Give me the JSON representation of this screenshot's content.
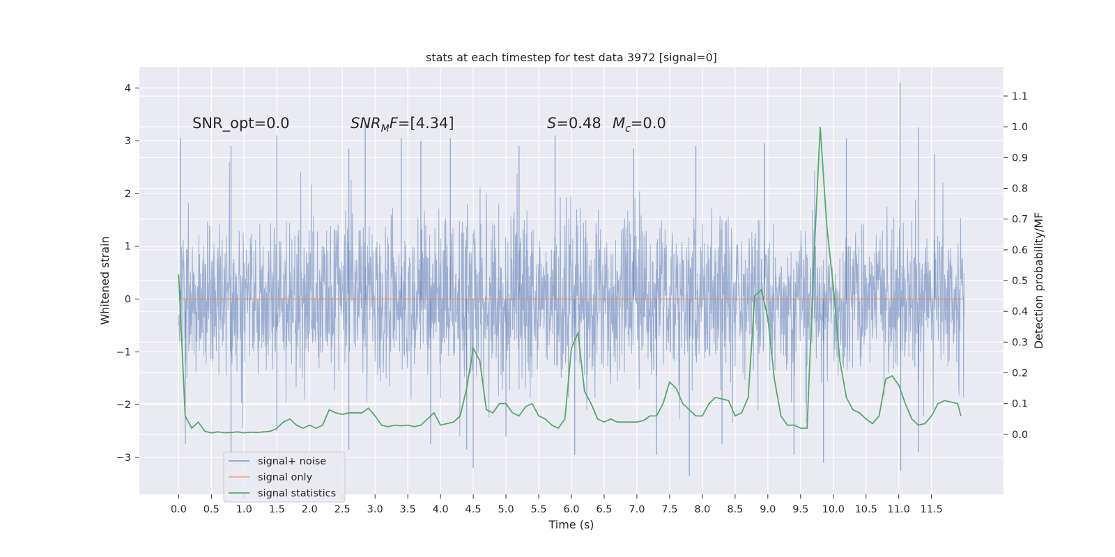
{
  "chart_data": {
    "type": "line",
    "title": "stats at each timestep for test data 3972 [signal=0]",
    "xlabel": "Time (s)",
    "ylabel_left": "Whitened strain",
    "ylabel_right": "Detection probability/MF",
    "xlim": [
      -0.6,
      12.6
    ],
    "ylim_left": [
      -3.7,
      4.4
    ],
    "ylim_right": [
      -0.195,
      1.195
    ],
    "x_ticks": [
      "0.0",
      "0.5",
      "1.0",
      "1.5",
      "2.0",
      "2.5",
      "3.0",
      "3.5",
      "4.0",
      "4.5",
      "5.0",
      "5.5",
      "6.0",
      "6.5",
      "7.0",
      "7.5",
      "8.0",
      "8.5",
      "9.0",
      "9.5",
      "10.0",
      "10.5",
      "11.0",
      "11.5"
    ],
    "y_ticks_left": [
      "−3",
      "−2",
      "−1",
      "0",
      "1",
      "2",
      "3",
      "4"
    ],
    "y_ticks_right": [
      "0.0",
      "0.1",
      "0.2",
      "0.3",
      "0.4",
      "0.5",
      "0.6",
      "0.7",
      "0.8",
      "0.9",
      "1.0",
      "1.1"
    ],
    "grid": true,
    "legend_position": "lower-left",
    "annotations": {
      "snr_opt": "SNR_opt=0.0",
      "snr_mf_sym": "SNR",
      "snr_mf_sub": "M",
      "snr_mf_sym2": "F",
      "snr_mf_val": "=[4.34]",
      "s_sym": "S",
      "s_val": "=0.48",
      "mc_sym": "M",
      "mc_sub": "c",
      "mc_val": "=0.0"
    },
    "series": [
      {
        "name": "signal+ noise",
        "color": "#4c72b0",
        "axis": "left",
        "x_range": [
          0.0,
          12.0
        ],
        "description_values": "noise band roughly within [-1.4, 1.5], spikes up to 4.1 near t=11.0 and down to -3.4 near t=7.8",
        "spikes": [
          [
            0.03,
            3.05
          ],
          [
            0.8,
            2.9
          ],
          [
            1.5,
            3.1
          ],
          [
            2.6,
            2.85
          ],
          [
            2.85,
            3.3
          ],
          [
            3.4,
            3.05
          ],
          [
            3.7,
            3.0
          ],
          [
            4.15,
            3.05
          ],
          [
            5.2,
            2.9
          ],
          [
            5.75,
            3.1
          ],
          [
            6.95,
            2.85
          ],
          [
            7.9,
            2.9
          ],
          [
            8.95,
            2.95
          ],
          [
            10.2,
            3.05
          ],
          [
            11.02,
            4.1
          ],
          [
            11.3,
            3.25
          ],
          [
            11.55,
            2.75
          ],
          [
            0.1,
            -2.75
          ],
          [
            0.8,
            -2.95
          ],
          [
            1.5,
            -2.5
          ],
          [
            2.6,
            -2.85
          ],
          [
            3.85,
            -2.75
          ],
          [
            4.4,
            -2.85
          ],
          [
            4.5,
            -3.2
          ],
          [
            5.0,
            -2.6
          ],
          [
            6.05,
            -2.95
          ],
          [
            7.3,
            -2.95
          ],
          [
            7.8,
            -3.35
          ],
          [
            8.3,
            -2.75
          ],
          [
            9.4,
            -2.95
          ],
          [
            9.85,
            -3.1
          ],
          [
            11.03,
            -3.25
          ],
          [
            11.3,
            -2.9
          ]
        ]
      },
      {
        "name": "signal only",
        "color": "#dd8452",
        "axis": "left",
        "x": [
          0.0,
          12.0
        ],
        "y": [
          0.0,
          0.0
        ]
      },
      {
        "name": "signal statistics",
        "color": "#55a868",
        "axis": "right",
        "x": [
          0.0,
          0.1,
          0.2,
          0.3,
          0.4,
          0.5,
          0.6,
          0.7,
          0.8,
          0.9,
          1.0,
          1.1,
          1.2,
          1.3,
          1.4,
          1.5,
          1.6,
          1.7,
          1.8,
          1.9,
          2.0,
          2.1,
          2.2,
          2.3,
          2.4,
          2.5,
          2.6,
          2.7,
          2.8,
          2.9,
          3.0,
          3.1,
          3.2,
          3.3,
          3.4,
          3.5,
          3.6,
          3.7,
          3.8,
          3.9,
          4.0,
          4.1,
          4.2,
          4.3,
          4.4,
          4.5,
          4.6,
          4.7,
          4.8,
          4.9,
          5.0,
          5.1,
          5.2,
          5.3,
          5.4,
          5.5,
          5.6,
          5.7,
          5.8,
          5.9,
          6.0,
          6.1,
          6.2,
          6.3,
          6.4,
          6.5,
          6.6,
          6.7,
          6.8,
          6.9,
          7.0,
          7.1,
          7.2,
          7.3,
          7.4,
          7.5,
          7.6,
          7.7,
          7.8,
          7.9,
          8.0,
          8.1,
          8.2,
          8.3,
          8.4,
          8.5,
          8.6,
          8.7,
          8.8,
          8.9,
          9.0,
          9.1,
          9.2,
          9.3,
          9.4,
          9.5,
          9.6,
          9.7,
          9.8,
          9.9,
          10.0,
          10.1,
          10.2,
          10.3,
          10.4,
          10.5,
          10.6,
          10.7,
          10.8,
          10.9,
          11.0,
          11.1,
          11.2,
          11.3,
          11.4,
          11.5,
          11.6,
          11.7,
          11.8,
          11.9,
          11.95
        ],
        "y": [
          0.52,
          0.06,
          0.02,
          0.04,
          0.01,
          0.005,
          0.008,
          0.005,
          0.006,
          0.008,
          0.005,
          0.007,
          0.006,
          0.008,
          0.01,
          0.02,
          0.04,
          0.05,
          0.03,
          0.02,
          0.03,
          0.02,
          0.03,
          0.08,
          0.07,
          0.065,
          0.07,
          0.07,
          0.07,
          0.085,
          0.06,
          0.03,
          0.025,
          0.03,
          0.028,
          0.03,
          0.025,
          0.03,
          0.05,
          0.07,
          0.03,
          0.035,
          0.04,
          0.06,
          0.15,
          0.28,
          0.24,
          0.08,
          0.07,
          0.1,
          0.1,
          0.07,
          0.06,
          0.09,
          0.1,
          0.06,
          0.05,
          0.03,
          0.02,
          0.05,
          0.28,
          0.33,
          0.14,
          0.1,
          0.05,
          0.04,
          0.05,
          0.04,
          0.04,
          0.04,
          0.04,
          0.045,
          0.06,
          0.06,
          0.1,
          0.17,
          0.15,
          0.1,
          0.08,
          0.06,
          0.06,
          0.1,
          0.12,
          0.115,
          0.11,
          0.06,
          0.07,
          0.12,
          0.45,
          0.47,
          0.38,
          0.18,
          0.06,
          0.03,
          0.03,
          0.02,
          0.02,
          0.55,
          1.0,
          0.68,
          0.48,
          0.24,
          0.12,
          0.08,
          0.07,
          0.05,
          0.035,
          0.06,
          0.18,
          0.19,
          0.16,
          0.1,
          0.05,
          0.03,
          0.035,
          0.06,
          0.1,
          0.11,
          0.105,
          0.1,
          0.06
        ]
      }
    ]
  }
}
